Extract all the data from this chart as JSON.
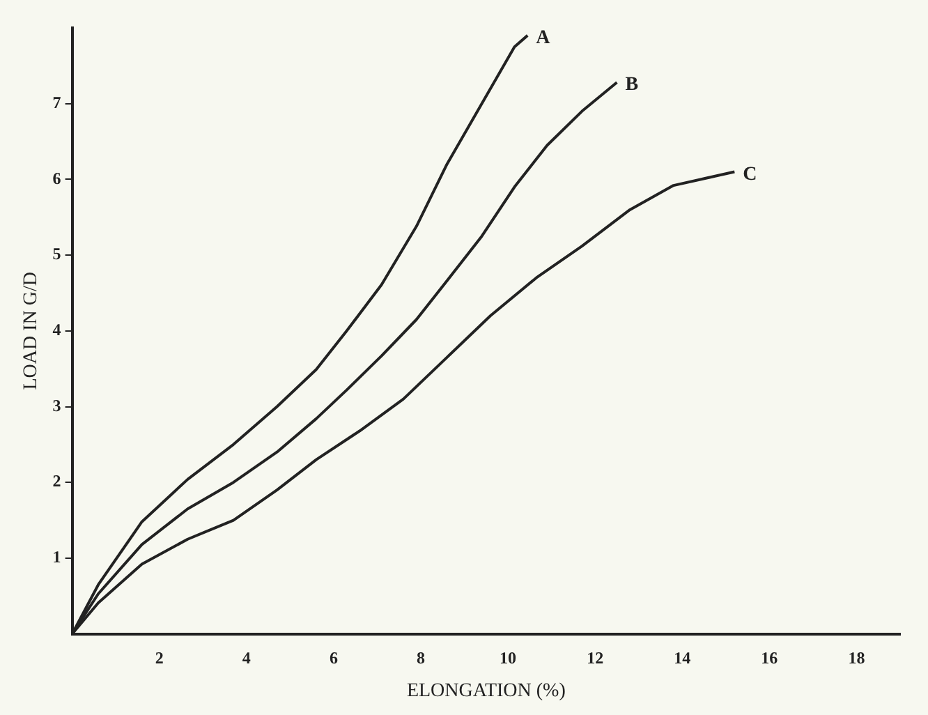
{
  "chart_data": {
    "type": "line",
    "xlabel": "ELONGATION (%)",
    "ylabel": "LOAD IN G/D",
    "xlim": [
      0,
      19
    ],
    "ylim": [
      0,
      8
    ],
    "xticks": [
      2,
      4,
      6,
      8,
      10,
      12,
      14,
      16,
      18
    ],
    "yticks": [
      1,
      2,
      3,
      4,
      5,
      6,
      7
    ],
    "grid": false,
    "legend": false,
    "marker": "none",
    "line_style": "solid",
    "series": [
      {
        "name": "A",
        "color": "#222222",
        "x": [
          0,
          0.6,
          1.6,
          2.65,
          3.7,
          4.7,
          5.6,
          6.3,
          7.1,
          7.9,
          8.6,
          9.4,
          10.15,
          10.45
        ],
        "values": [
          0,
          0.65,
          1.48,
          2.04,
          2.5,
          3.0,
          3.49,
          4.0,
          4.61,
          5.38,
          6.2,
          7.0,
          7.75,
          7.9
        ]
      },
      {
        "name": "B",
        "color": "#222222",
        "x": [
          0,
          0.6,
          1.6,
          2.65,
          3.7,
          4.7,
          5.6,
          6.3,
          7.1,
          7.9,
          8.6,
          9.4,
          10.15,
          10.9,
          11.7,
          12.5
        ],
        "values": [
          0,
          0.53,
          1.18,
          1.65,
          2.0,
          2.4,
          2.84,
          3.22,
          3.67,
          4.15,
          4.66,
          5.25,
          5.9,
          6.45,
          6.9,
          7.28
        ]
      },
      {
        "name": "C",
        "color": "#222222",
        "x": [
          0,
          0.6,
          1.6,
          2.65,
          3.7,
          4.7,
          5.6,
          6.6,
          7.6,
          8.6,
          9.6,
          10.65,
          11.7,
          12.8,
          13.8,
          15.2
        ],
        "values": [
          0,
          0.41,
          0.92,
          1.25,
          1.5,
          1.9,
          2.3,
          2.68,
          3.1,
          3.65,
          4.2,
          4.7,
          5.12,
          5.6,
          5.92,
          6.1
        ]
      }
    ]
  }
}
